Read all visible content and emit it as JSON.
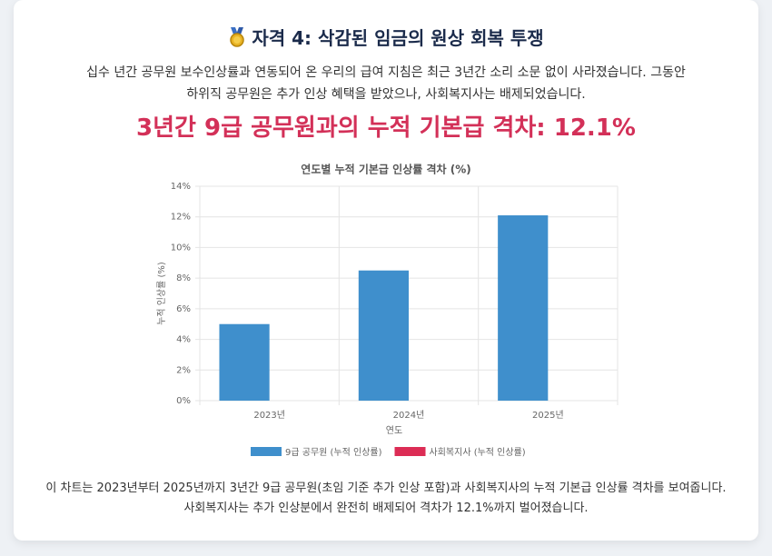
{
  "header": {
    "title": "자격 4: 삭감된 임금의 원상 회복 투쟁",
    "intro": "십수 년간 공무원 보수인상률과 연동되어 온 우리의 급여 지침은 최근 3년간 소리 소문 없이 사라졌습니다. 그동안 하위직 공무원은 추가 인상 혜택을 받았으나, 사회복지사는 배제되었습니다.",
    "highlight": "3년간 9급 공무원과의 누적 기본급 격차: 12.1%"
  },
  "chart_data": {
    "type": "bar",
    "title": "연도별 누적 기본급 인상률 격차 (%)",
    "x_label": "연도",
    "y_label": "누적 인상률 (%)",
    "categories": [
      "2023년",
      "2024년",
      "2025년"
    ],
    "series": [
      {
        "name": "9급 공무원 (누적 인상률)",
        "color": "#3f8fcc",
        "values": [
          5.0,
          8.5,
          12.1
        ]
      },
      {
        "name": "사회복지사 (누적 인상률)",
        "color": "#dc2c55",
        "values": [
          0,
          0,
          0
        ]
      }
    ],
    "ylim": [
      0,
      14
    ],
    "yticks": [
      {
        "value": 0,
        "label": "0%"
      },
      {
        "value": 2,
        "label": "2%"
      },
      {
        "value": 4,
        "label": "4%"
      },
      {
        "value": 6,
        "label": "6%"
      },
      {
        "value": 8,
        "label": "8%"
      },
      {
        "value": 10,
        "label": "10%"
      },
      {
        "value": 12,
        "label": "12%"
      },
      {
        "value": 14,
        "label": "14%"
      }
    ],
    "grid": true,
    "legend": "bottom"
  },
  "caption": "이 차트는 2023년부터 2025년까지 3년간 9급 공무원(초임 기준 추가 인상 포함)과 사회복지사의 누적 기본급 인상률 격차를 보여줍니다. 사회복지사는 추가 인상분에서 완전히 배제되어 격차가 12.1%까지 벌어졌습니다."
}
